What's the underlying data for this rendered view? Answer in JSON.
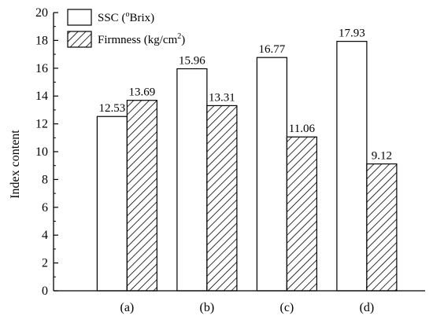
{
  "chart_data": {
    "type": "bar",
    "categories": [
      "(a)",
      "(b)",
      "(c)",
      "(d)"
    ],
    "series": [
      {
        "name": "SSC (°Brix)",
        "legend_main": "SSC (",
        "legend_sup": "o",
        "legend_tail": "Brix)",
        "pattern": "none",
        "values": [
          12.53,
          15.96,
          16.77,
          17.93
        ],
        "value_labels": [
          "12.53",
          "15.96",
          "16.77",
          "17.93"
        ]
      },
      {
        "name": "Firmness (kg/cm²)",
        "legend_main": "Firmness (kg/cm",
        "legend_sup": "2",
        "legend_tail": ")",
        "pattern": "diagonal-hatch",
        "values": [
          13.69,
          13.31,
          11.06,
          9.12
        ],
        "value_labels": [
          "13.69",
          "13.31",
          "11.06",
          "9.12"
        ]
      }
    ],
    "xlabel": "",
    "ylabel": "Index content",
    "ylim": [
      0,
      20
    ],
    "yticks": [
      0,
      2,
      4,
      6,
      8,
      10,
      12,
      14,
      16,
      18,
      20
    ],
    "grid": false,
    "legend_position": "top-left",
    "colors": {
      "bar_fill": "#ffffff",
      "stroke": "#000000",
      "hatch": "#000000"
    }
  }
}
